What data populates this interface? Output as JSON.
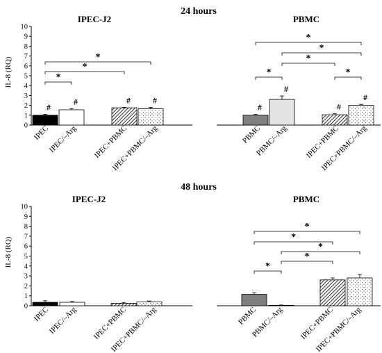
{
  "chart_data": [
    {
      "type": "bar",
      "title": "24 hours",
      "ylabel": "IL-8 (RQ)",
      "ylim": [
        0,
        10
      ],
      "yticks": [
        "0",
        "1",
        "2",
        "3",
        "4",
        "5",
        "6",
        "7",
        "8",
        "9",
        "10"
      ],
      "grid": false,
      "panels": [
        {
          "title": "IPEC-J2",
          "categories": [
            "IPEC",
            "IPEC/–Arg",
            "IPEC+PBMC",
            "IPEC+PBMC/–Arg"
          ],
          "values": [
            1.0,
            1.55,
            1.75,
            1.65
          ],
          "errors": [
            0.1,
            0.12,
            0.05,
            0.15
          ],
          "hash_marks": [
            "#",
            "#",
            "#",
            "#"
          ],
          "significance": [
            {
              "from": 0,
              "to": 1,
              "label": "*"
            },
            {
              "from": 0,
              "to": 2,
              "label": "*"
            },
            {
              "from": 0,
              "to": 3,
              "label": "*"
            }
          ]
        },
        {
          "title": "PBMC",
          "categories": [
            "PBMC",
            "PBMC/–Arg",
            "IPEC+PBMC",
            "IPEC+PBMC/–Arg"
          ],
          "values": [
            1.0,
            2.6,
            1.05,
            2.0
          ],
          "errors": [
            0.08,
            0.35,
            0.1,
            0.1
          ],
          "hash_marks": [
            "#",
            "#",
            "#",
            "#"
          ],
          "significance": [
            {
              "from": 0,
              "to": 1,
              "label": "*"
            },
            {
              "from": 2,
              "to": 3,
              "label": "*"
            },
            {
              "from": 1,
              "to": 2,
              "label": "*"
            },
            {
              "from": 1,
              "to": 3,
              "label": "*"
            },
            {
              "from": 0,
              "to": 3,
              "label": "*"
            }
          ]
        }
      ]
    },
    {
      "type": "bar",
      "title": "48 hours",
      "ylabel": "IL-8 (RQ)",
      "ylim": [
        0,
        10
      ],
      "yticks": [
        "0",
        "1",
        "2",
        "3",
        "4",
        "5",
        "6",
        "7",
        "8",
        "9",
        "10"
      ],
      "grid": false,
      "panels": [
        {
          "title": "IPEC-J2",
          "categories": [
            "IPEC",
            "IPEC/–Arg",
            "IPEC+PBMC",
            "IPEC+PBMC/–Arg"
          ],
          "values": [
            0.35,
            0.35,
            0.25,
            0.4
          ],
          "errors": [
            0.15,
            0.08,
            0.08,
            0.08
          ],
          "hash_marks": [],
          "significance": []
        },
        {
          "title": "PBMC",
          "categories": [
            "PBMC",
            "PBMC/–Arg",
            "IPEC+PBMC",
            "IPEC+PBMC/–Arg"
          ],
          "values": [
            1.15,
            0.05,
            2.6,
            2.8
          ],
          "errors": [
            0.15,
            0.03,
            0.2,
            0.35
          ],
          "hash_marks": [],
          "significance": [
            {
              "from": 0,
              "to": 1,
              "label": "*"
            },
            {
              "from": 1,
              "to": 2,
              "label": "*"
            },
            {
              "from": 1,
              "to": 3,
              "label": "*"
            },
            {
              "from": 0,
              "to": 2,
              "label": "*"
            },
            {
              "from": 0,
              "to": 3,
              "label": "*"
            }
          ]
        }
      ]
    }
  ],
  "fills": {
    "IPEC": "black",
    "IPEC/–Arg": "white",
    "IPEC+PBMC": "diagonal-hatch",
    "IPEC+PBMC/–Arg": "dots",
    "PBMC": "#7f7f7f",
    "PBMC/–Arg": "#e3e3e3"
  }
}
